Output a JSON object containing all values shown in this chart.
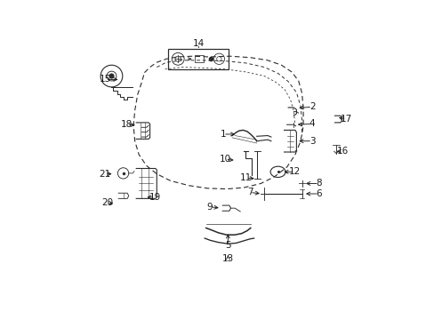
{
  "bg_color": "#ffffff",
  "fg_color": "#1a1a1a",
  "fig_width": 4.89,
  "fig_height": 3.6,
  "dpi": 100
}
